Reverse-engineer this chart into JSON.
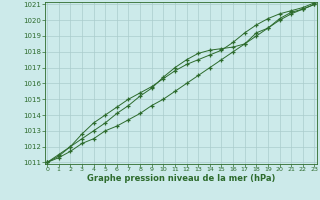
{
  "x": [
    0,
    1,
    2,
    3,
    4,
    5,
    6,
    7,
    8,
    9,
    10,
    11,
    12,
    13,
    14,
    15,
    16,
    17,
    18,
    19,
    20,
    21,
    22,
    23
  ],
  "line1": [
    1011.0,
    1011.3,
    1011.7,
    1012.2,
    1012.5,
    1013.0,
    1013.3,
    1013.7,
    1014.1,
    1014.6,
    1015.0,
    1015.5,
    1016.0,
    1016.5,
    1017.0,
    1017.5,
    1018.0,
    1018.5,
    1019.0,
    1019.5,
    1020.0,
    1020.4,
    1020.7,
    1021.0
  ],
  "line2": [
    1011.0,
    1011.4,
    1012.0,
    1012.5,
    1013.0,
    1013.5,
    1014.1,
    1014.6,
    1015.2,
    1015.7,
    1016.4,
    1017.0,
    1017.5,
    1017.9,
    1018.1,
    1018.2,
    1018.3,
    1018.5,
    1019.2,
    1019.5,
    1020.1,
    1020.5,
    1020.7,
    1021.0
  ],
  "line3": [
    1011.0,
    1011.5,
    1012.0,
    1012.8,
    1013.5,
    1014.0,
    1014.5,
    1015.0,
    1015.4,
    1015.8,
    1016.3,
    1016.8,
    1017.2,
    1017.5,
    1017.8,
    1018.1,
    1018.6,
    1019.2,
    1019.7,
    1020.1,
    1020.4,
    1020.6,
    1020.8,
    1021.1
  ],
  "line_color": "#2d6b2d",
  "bg_color": "#cceaea",
  "grid_color": "#aacccc",
  "xlabel": "Graphe pression niveau de la mer (hPa)",
  "ylim_min": 1011,
  "ylim_max": 1021,
  "xlim_min": 0,
  "xlim_max": 23,
  "yticks": [
    1011,
    1012,
    1013,
    1014,
    1015,
    1016,
    1017,
    1018,
    1019,
    1020,
    1021
  ],
  "xticks": [
    0,
    1,
    2,
    3,
    4,
    5,
    6,
    7,
    8,
    9,
    10,
    11,
    12,
    13,
    14,
    15,
    16,
    17,
    18,
    19,
    20,
    21,
    22,
    23
  ]
}
